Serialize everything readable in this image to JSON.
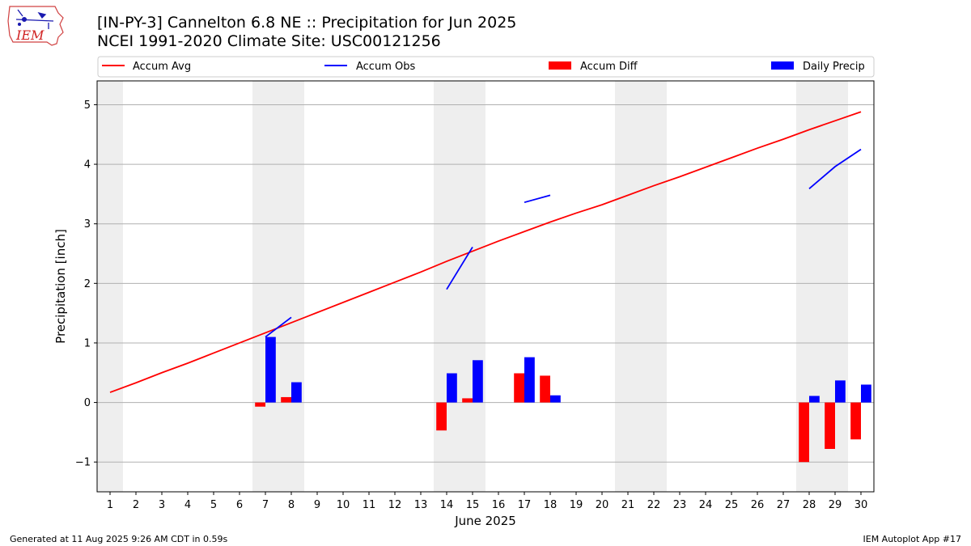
{
  "header": {
    "title_line1": "[IN-PY-3] Cannelton 6.8 NE :: Precipitation for Jun 2025",
    "title_line2": "NCEI 1991-2020 Climate Site: USC00121256",
    "logo_text": "IEM"
  },
  "footer": {
    "generated": "Generated at 11 Aug 2025 9:26 AM CDT in 0.59s",
    "app": "IEM Autoplot App #17"
  },
  "colors": {
    "avg": "#ff0000",
    "obs": "#0000ff",
    "diff": "#ff0000",
    "daily": "#0000ff",
    "weekend_shade": "#eeeeee",
    "grid": "#b0b0b0"
  },
  "chart_data": {
    "type": "bar",
    "title": "[IN-PY-3] Cannelton 6.8 NE :: Precipitation for Jun 2025",
    "xlabel": "June 2025",
    "ylabel": "Precipitation [inch]",
    "xlim": [
      0.5,
      30.5
    ],
    "ylim": [
      -1.5,
      5.4
    ],
    "yticks": [
      -1,
      0,
      1,
      2,
      3,
      4,
      5
    ],
    "ytick_labels": [
      "−1",
      "0",
      "1",
      "2",
      "3",
      "4",
      "5"
    ],
    "xticks": [
      1,
      2,
      3,
      4,
      5,
      6,
      7,
      8,
      9,
      10,
      11,
      12,
      13,
      14,
      15,
      16,
      17,
      18,
      19,
      20,
      21,
      22,
      23,
      24,
      25,
      26,
      27,
      28,
      29,
      30
    ],
    "grid": "horizontal",
    "legend_placement": "top",
    "legend": [
      "Accum Avg",
      "Accum Obs",
      "Accum Diff",
      "Daily Precip"
    ],
    "weekend_days": [
      1,
      7,
      8,
      14,
      15,
      21,
      22,
      28,
      29
    ],
    "series": [
      {
        "name": "Accum Avg",
        "kind": "line",
        "x": [
          1,
          2,
          3,
          4,
          5,
          6,
          7,
          8,
          9,
          10,
          11,
          12,
          13,
          14,
          15,
          16,
          17,
          18,
          19,
          20,
          21,
          22,
          23,
          24,
          25,
          26,
          27,
          28,
          29,
          30
        ],
        "values": [
          0.17,
          0.33,
          0.5,
          0.66,
          0.83,
          1.0,
          1.17,
          1.34,
          1.51,
          1.68,
          1.85,
          2.02,
          2.19,
          2.37,
          2.54,
          2.71,
          2.87,
          3.03,
          3.18,
          3.32,
          3.48,
          3.64,
          3.79,
          3.95,
          4.11,
          4.27,
          4.42,
          4.58,
          4.73,
          4.88
        ]
      },
      {
        "name": "Accum Obs",
        "kind": "line",
        "segments": [
          {
            "x": [
              7,
              8
            ],
            "values": [
              1.1,
              1.43
            ]
          },
          {
            "x": [
              14,
              15
            ],
            "values": [
              1.9,
              2.61
            ]
          },
          {
            "x": [
              17,
              18
            ],
            "values": [
              3.36,
              3.48
            ]
          },
          {
            "x": [
              28,
              29,
              30
            ],
            "values": [
              3.59,
              3.96,
              4.25
            ]
          }
        ]
      },
      {
        "name": "Accum Diff",
        "kind": "bar",
        "x": [
          7,
          8,
          14,
          15,
          17,
          18,
          28,
          29,
          30
        ],
        "values": [
          -0.07,
          0.09,
          -0.47,
          0.07,
          0.49,
          0.45,
          -1.0,
          -0.78,
          -0.62
        ]
      },
      {
        "name": "Daily Precip",
        "kind": "bar",
        "x": [
          7,
          8,
          14,
          15,
          17,
          18,
          28,
          29,
          30
        ],
        "values": [
          1.1,
          0.34,
          0.49,
          0.71,
          0.76,
          0.12,
          0.11,
          0.37,
          0.3
        ]
      }
    ]
  }
}
